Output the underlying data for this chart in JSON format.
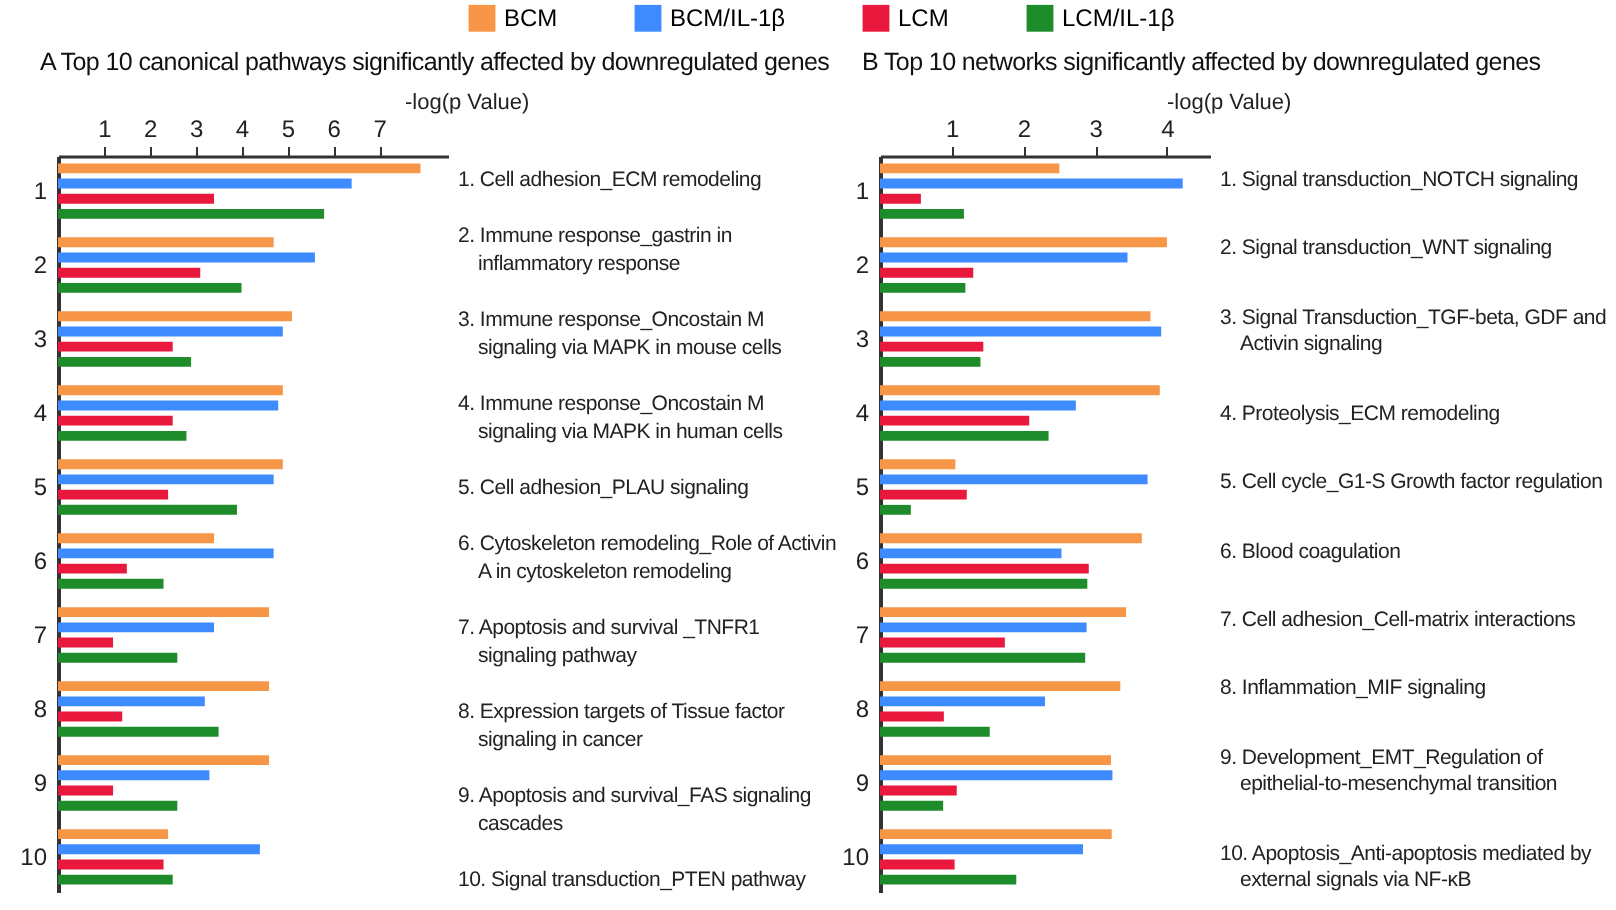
{
  "chart_data": [
    {
      "type": "bar",
      "orientation": "horizontal",
      "title": "A Top 10 canonical pathways significantly affected by downregulated genes",
      "xlabel": "-log(p Value)",
      "categories": [
        "1",
        "2",
        "3",
        "4",
        "5",
        "6",
        "7",
        "8",
        "9",
        "10"
      ],
      "series": [
        {
          "name": "BCM",
          "color": "#f79646",
          "values": [
            7.9,
            4.7,
            5.1,
            4.9,
            4.9,
            3.4,
            4.6,
            4.6,
            4.6,
            2.4
          ]
        },
        {
          "name": "BCM/IL-1β",
          "color": "#3d8bff",
          "values": [
            6.4,
            5.6,
            4.9,
            4.8,
            4.7,
            4.7,
            3.4,
            3.2,
            3.3,
            4.4
          ]
        },
        {
          "name": "LCM",
          "color": "#e8193c",
          "values": [
            3.4,
            3.1,
            2.5,
            2.5,
            2.4,
            1.5,
            1.2,
            1.4,
            1.2,
            2.3
          ]
        },
        {
          "name": "LCM/IL-1β",
          "color": "#1e8c2a",
          "values": [
            5.8,
            4.0,
            2.9,
            2.8,
            3.9,
            2.3,
            2.6,
            3.5,
            2.6,
            2.5
          ]
        }
      ],
      "xlim": [
        0,
        8.5
      ],
      "xticks": [
        1,
        2,
        3,
        4,
        5,
        6,
        7
      ],
      "legend": "top",
      "annotations": [
        "1. Cell adhesion_ECM remodeling",
        "2. Immune response_gastrin in inflammatory response",
        "3. Immune response_Oncostain M signaling via MAPK in mouse cells",
        "4. Immune response_Oncostain M signaling via MAPK in human cells",
        "5. Cell adhesion_PLAU signaling",
        "6. Cytoskeleton remodeling_Role of Activin A in cytoskeleton remodeling",
        "7. Apoptosis and survival _TNFR1 signaling pathway",
        "8. Expression targets of Tissue factor signaling in cancer",
        "9. Apoptosis and survival_FAS signaling cascades",
        "10. Signal transduction_PTEN pathway"
      ]
    },
    {
      "type": "bar",
      "orientation": "horizontal",
      "title": "B Top 10 networks significantly affected by downregulated genes",
      "xlabel": "-log(p Value)",
      "categories": [
        "1",
        "2",
        "3",
        "4",
        "5",
        "6",
        "7",
        "8",
        "9",
        "10"
      ],
      "series": [
        {
          "color": "#f79646",
          "values": [
            2.5,
            4.0,
            3.77,
            3.9,
            1.05,
            3.65,
            3.43,
            3.35,
            3.22,
            3.23
          ]
        },
        {
          "color": "#3d8bff",
          "values": [
            4.22,
            3.45,
            3.92,
            2.73,
            3.73,
            2.53,
            2.88,
            2.3,
            3.24,
            2.83
          ]
        },
        {
          "color": "#e8193c",
          "values": [
            0.57,
            1.3,
            1.44,
            2.08,
            1.21,
            2.91,
            1.74,
            0.89,
            1.07,
            1.04
          ]
        },
        {
          "color": "#1e8c2a",
          "values": [
            1.17,
            1.19,
            1.4,
            2.35,
            0.43,
            2.89,
            2.86,
            1.53,
            0.88,
            1.9
          ]
        }
      ],
      "xlim": [
        0,
        4.6
      ],
      "xticks": [
        1,
        2,
        3,
        4
      ],
      "annotations": [
        "1. Signal transduction_NOTCH signaling",
        "2. Signal transduction_WNT signaling",
        "3. Signal Transduction_TGF-beta, GDF and Activin signaling",
        "4. Proteolysis_ECM remodeling",
        "5. Cell cycle_G1-S Growth factor regulation",
        "6. Blood coagulation",
        "7. Cell adhesion_Cell-matrix interactions",
        "8. Inflammation_MIF signaling",
        "9. Development_EMT_Regulation of epithelial-to-mesenchymal transition",
        "10. Apoptosis_Anti-apoptosis mediated by external signals via NF-κB"
      ]
    }
  ]
}
